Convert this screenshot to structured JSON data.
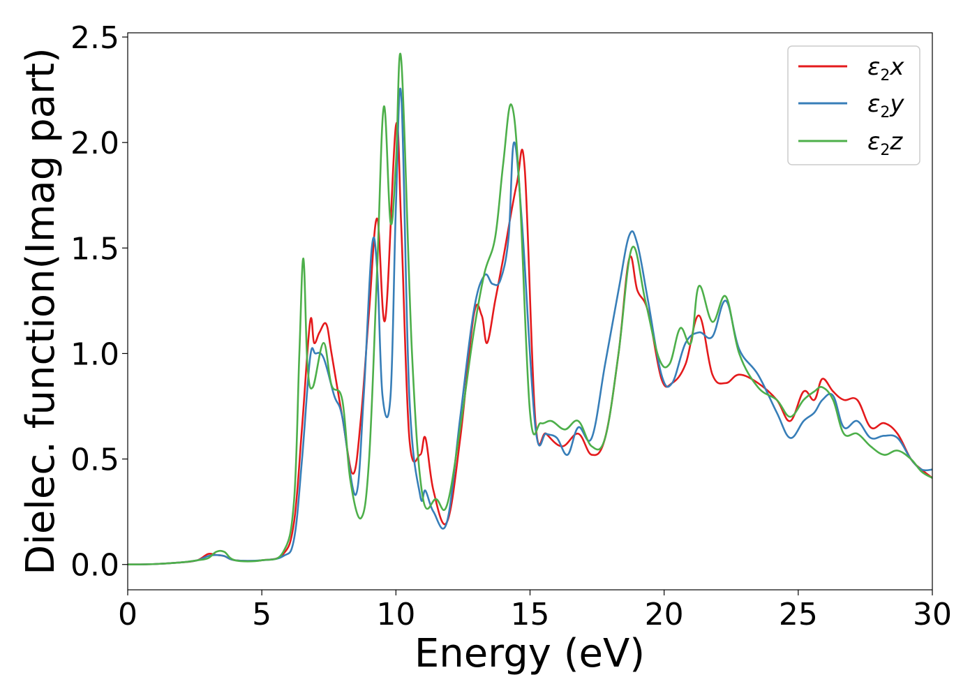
{
  "chart_data": {
    "type": "line",
    "xlabel": "Energy (eV)",
    "ylabel": "Dielec. function(Imag part)",
    "xlim": [
      0,
      30
    ],
    "ylim": [
      -0.12,
      2.52
    ],
    "xticks": [
      0,
      5,
      10,
      15,
      20,
      25,
      30
    ],
    "xtick_labels": [
      "0",
      "5",
      "10",
      "15",
      "20",
      "25",
      "30"
    ],
    "yticks": [
      0.0,
      0.5,
      1.0,
      1.5,
      2.0,
      2.5
    ],
    "ytick_labels": [
      "0.0",
      "0.5",
      "1.0",
      "1.5",
      "2.0",
      "2.5"
    ],
    "grid": false,
    "legend_position": "top-right",
    "series": [
      {
        "name": "ε2x",
        "legend_main": "ε",
        "legend_sub": "2",
        "legend_tail": "x",
        "color": "#e41a1c",
        "x": [
          0,
          1,
          2,
          2.6,
          3.0,
          3.3,
          3.6,
          4,
          5,
          5.8,
          6.2,
          6.5,
          6.8,
          6.95,
          7.15,
          7.4,
          7.6,
          8.0,
          8.4,
          8.7,
          9.0,
          9.3,
          9.6,
          10.0,
          10.2,
          10.5,
          10.9,
          11.1,
          11.4,
          11.9,
          12.4,
          12.9,
          13.2,
          13.4,
          13.7,
          14.0,
          14.5,
          14.8,
          15.2,
          15.6,
          16.2,
          16.8,
          17.3,
          17.8,
          18.3,
          18.7,
          19.0,
          19.4,
          19.9,
          20.3,
          20.8,
          21.3,
          21.8,
          22.3,
          22.8,
          23.5,
          24.2,
          24.7,
          25.2,
          25.6,
          25.9,
          26.3,
          26.7,
          27.2,
          27.7,
          28.2,
          28.7,
          29.2,
          29.6,
          30.0
        ],
        "y": [
          0,
          0.002,
          0.01,
          0.02,
          0.05,
          0.045,
          0.04,
          0.02,
          0.02,
          0.05,
          0.2,
          0.65,
          1.15,
          1.05,
          1.1,
          1.14,
          1.0,
          0.7,
          0.43,
          0.7,
          1.2,
          1.64,
          1.16,
          2.08,
          1.6,
          0.6,
          0.52,
          0.6,
          0.35,
          0.2,
          0.6,
          1.18,
          1.18,
          1.05,
          1.25,
          1.45,
          1.8,
          1.88,
          0.68,
          0.62,
          0.56,
          0.62,
          0.52,
          0.6,
          1.0,
          1.45,
          1.3,
          1.2,
          0.88,
          0.86,
          0.95,
          1.18,
          0.9,
          0.86,
          0.9,
          0.86,
          0.78,
          0.68,
          0.82,
          0.78,
          0.88,
          0.82,
          0.78,
          0.78,
          0.65,
          0.67,
          0.62,
          0.5,
          0.45,
          0.41
        ]
      },
      {
        "name": "ε2y",
        "legend_main": "ε",
        "legend_sub": "2",
        "legend_tail": "y",
        "color": "#377eb8",
        "x": [
          0,
          1,
          2,
          2.6,
          3.0,
          3.3,
          3.6,
          4,
          5,
          5.8,
          6.2,
          6.5,
          6.8,
          7.0,
          7.3,
          7.7,
          8.0,
          8.5,
          8.8,
          9.1,
          9.3,
          9.5,
          9.8,
          10.0,
          10.2,
          10.5,
          10.9,
          11.1,
          11.4,
          11.9,
          12.4,
          12.9,
          13.3,
          13.6,
          13.9,
          14.2,
          14.4,
          14.7,
          15.2,
          15.6,
          16.0,
          16.4,
          16.8,
          17.3,
          17.8,
          18.3,
          18.7,
          19.0,
          19.4,
          19.9,
          20.3,
          20.8,
          21.3,
          21.8,
          22.3,
          22.8,
          23.5,
          24.2,
          24.7,
          25.2,
          25.6,
          25.9,
          26.3,
          26.7,
          27.2,
          27.7,
          28.2,
          28.7,
          29.2,
          29.6,
          30.0
        ],
        "y": [
          0,
          0.002,
          0.01,
          0.02,
          0.04,
          0.045,
          0.04,
          0.02,
          0.02,
          0.04,
          0.12,
          0.5,
          0.98,
          1.0,
          0.98,
          0.8,
          0.7,
          0.33,
          0.8,
          1.5,
          1.4,
          0.8,
          0.8,
          1.7,
          2.22,
          0.8,
          0.33,
          0.35,
          0.25,
          0.2,
          0.7,
          1.2,
          1.37,
          1.33,
          1.35,
          1.55,
          2.0,
          1.62,
          0.65,
          0.62,
          0.6,
          0.52,
          0.65,
          0.6,
          0.95,
          1.3,
          1.56,
          1.52,
          1.25,
          0.9,
          0.86,
          1.05,
          1.1,
          1.08,
          1.25,
          1.02,
          0.9,
          0.72,
          0.6,
          0.68,
          0.72,
          0.78,
          0.8,
          0.65,
          0.68,
          0.6,
          0.61,
          0.6,
          0.5,
          0.45,
          0.45
        ]
      },
      {
        "name": "ε2z",
        "legend_main": "ε",
        "legend_sub": "2",
        "legend_tail": "z",
        "color": "#4daf4a",
        "x": [
          0,
          1,
          2,
          2.6,
          3.0,
          3.3,
          3.6,
          4,
          5,
          5.8,
          6.2,
          6.4,
          6.55,
          6.7,
          6.9,
          7.3,
          7.6,
          8.0,
          8.3,
          8.7,
          9.0,
          9.3,
          9.55,
          9.8,
          10.0,
          10.2,
          10.6,
          11.0,
          11.5,
          11.9,
          12.4,
          12.9,
          13.3,
          13.7,
          14.0,
          14.3,
          14.6,
          15.0,
          15.4,
          15.8,
          16.3,
          16.8,
          17.3,
          17.8,
          18.3,
          18.8,
          19.3,
          19.8,
          20.2,
          20.6,
          21.0,
          21.3,
          21.8,
          22.3,
          22.8,
          23.5,
          24.2,
          24.7,
          25.2,
          25.6,
          25.9,
          26.3,
          26.7,
          27.2,
          27.7,
          28.2,
          28.7,
          29.2,
          29.6,
          30.0
        ],
        "y": [
          0,
          0.002,
          0.01,
          0.02,
          0.03,
          0.06,
          0.06,
          0.02,
          0.02,
          0.06,
          0.3,
          1.0,
          1.45,
          0.95,
          0.84,
          1.05,
          0.85,
          0.78,
          0.4,
          0.22,
          0.5,
          1.4,
          2.17,
          1.62,
          1.9,
          2.39,
          1.0,
          0.32,
          0.31,
          0.28,
          0.65,
          1.1,
          1.38,
          1.55,
          1.9,
          2.18,
          1.8,
          0.72,
          0.67,
          0.68,
          0.64,
          0.68,
          0.56,
          0.6,
          1.0,
          1.5,
          1.25,
          0.98,
          0.95,
          1.12,
          1.05,
          1.32,
          1.15,
          1.27,
          1.0,
          0.84,
          0.78,
          0.7,
          0.78,
          0.82,
          0.84,
          0.78,
          0.62,
          0.62,
          0.56,
          0.52,
          0.54,
          0.5,
          0.44,
          0.41
        ]
      }
    ]
  }
}
